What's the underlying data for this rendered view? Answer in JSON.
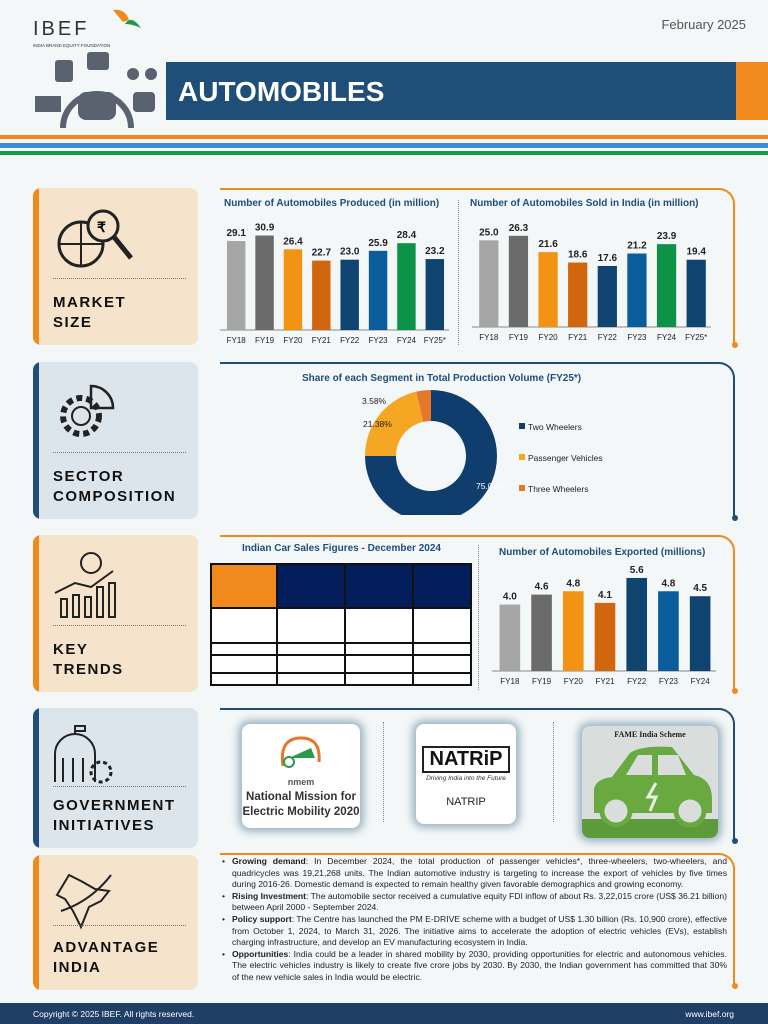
{
  "header": {
    "date": "February 2025",
    "logo_text": "IBEF",
    "logo_subtext": "INDIA BRAND EQUITY FOUNDATION",
    "title": "AUTOMOBILES"
  },
  "colors": {
    "navy": "#1f4e79",
    "orange": "#f08a1c",
    "green": "#0d9347",
    "blue_stripe": "#3b8fd6"
  },
  "sections": [
    {
      "label": "MARKET SIZE",
      "icon": "globe-magnifier-rupee-icon"
    },
    {
      "label": "SECTOR COMPOSITION",
      "icon": "gear-pie-chart-icon"
    },
    {
      "label": "KEY TRENDS",
      "icon": "globe-bar-chart-trend-icon"
    },
    {
      "label": "GOVERNMENT INITIATIVES",
      "icon": "government-building-gear-icon"
    },
    {
      "label": "ADVANTAGE INDIA",
      "icon": "india-map-arrow-icon"
    }
  ],
  "chart_data": [
    {
      "type": "bar",
      "title": "Number of Automobiles Produced (in million)",
      "categories": [
        "FY18",
        "FY19",
        "FY20",
        "FY21",
        "FY22",
        "FY23",
        "FY24",
        "FY25*"
      ],
      "values": [
        29.1,
        30.9,
        26.4,
        22.7,
        23.0,
        25.9,
        28.4,
        23.2
      ],
      "colors": [
        "#a6a6a6",
        "#6b6b6b",
        "#f39313",
        "#d0670f",
        "#0f4470",
        "#0a5c9a",
        "#0d9347",
        "#0f4470"
      ],
      "ylim": [
        0,
        35
      ]
    },
    {
      "type": "bar",
      "title": "Number of Automobiles Sold in India (in million)",
      "categories": [
        "FY18",
        "FY19",
        "FY20",
        "FY21",
        "FY22",
        "FY23",
        "FY24",
        "FY25*"
      ],
      "values": [
        25.0,
        26.3,
        21.6,
        18.6,
        17.6,
        21.2,
        23.9,
        19.4
      ],
      "colors": [
        "#a6a6a6",
        "#6b6b6b",
        "#f39313",
        "#d0670f",
        "#0f4470",
        "#0a5c9a",
        "#0d9347",
        "#0f4470"
      ],
      "ylim": [
        0,
        30
      ]
    },
    {
      "type": "pie",
      "title": "Share of each Segment in Total Production Volume (FY25*)",
      "series": [
        {
          "name": "Two Wheelers",
          "value": 75.04,
          "label": "75.04%",
          "color": "#0f3d6e"
        },
        {
          "name": "Passenger Vehicles",
          "value": 21.38,
          "label": "21.38%",
          "color": "#f5a623"
        },
        {
          "name": "Three Wheelers",
          "value": 3.58,
          "label": "3.58%",
          "color": "#e5762a"
        }
      ],
      "legend": "right"
    },
    {
      "type": "bar",
      "title": "Number of Automobiles Exported (millions)",
      "categories": [
        "FY18",
        "FY19",
        "FY20",
        "FY21",
        "FY22",
        "FY23",
        "FY24"
      ],
      "values": [
        4.0,
        4.6,
        4.8,
        4.1,
        5.6,
        4.8,
        4.5
      ],
      "colors": [
        "#a6a6a6",
        "#6b6b6b",
        "#f39313",
        "#d0670f",
        "#0f4470",
        "#0a5c9a",
        "#0f4470"
      ],
      "ylim": [
        0,
        6.2
      ]
    }
  ],
  "car_sales_table": {
    "title": "Indian Car Sales Figures - December 2024"
  },
  "government": [
    {
      "logo_text": "nmem",
      "caption": "National Mission for Electric Mobility 2020"
    },
    {
      "logo_text": "NATRiP",
      "tagline": "Driving India into the Future",
      "caption": "NATRIP"
    },
    {
      "caption": "FAME India Scheme"
    }
  ],
  "advantage": [
    {
      "bold": "Growing demand",
      "text": ": In December 2024, the total production of passenger vehicles*, three-wheelers, two-wheelers, and quadricycles was 19,21,268 units. The Indian automotive industry is targeting to increase the export of vehicles by five times during 2016-26. Domestic demand is expected to remain healthy given favorable demographics and growing economy."
    },
    {
      "bold": "Rising Investment",
      "text": ": The automobile sector received a cumulative equity FDI inflow of about Rs. 3,22,015 crore (US$ 36.21 billion) between April 2000 - September 2024."
    },
    {
      "bold": "Policy support",
      "text": ": The Centre has launched the PM E-DRIVE scheme with a budget of US$ 1.30 billion (Rs. 10,900 crore), effective from October 1, 2024, to March 31, 2026. The initiative aims to accelerate the adoption of electric vehicles (EVs), establish charging infrastructure, and develop an EV manufacturing ecosystem in India."
    },
    {
      "bold": "Opportunities",
      "text": ": India could be a leader in shared mobility by 2030, providing opportunities for electric and autonomous vehicles. The electric vehicles industry is likely to create five crore jobs by 2030. By 2030, the Indian government has committed that 30% of the new vehicle sales in India would be electric."
    }
  ],
  "footer": {
    "copyright": "Copyright © 2025 IBEF. All rights reserved.",
    "website": "www.ibef.org"
  }
}
